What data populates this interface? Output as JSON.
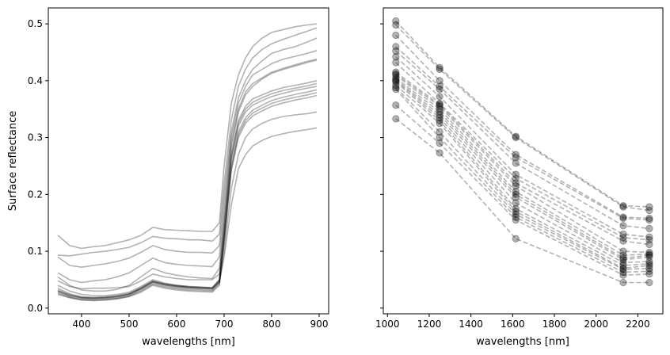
{
  "chart_data": [
    {
      "type": "line",
      "xlabel": "wavelengths [nm]",
      "ylabel": "Surface reflectance",
      "xlim": [
        330,
        920
      ],
      "ylim": [
        -0.01,
        0.528
      ],
      "xticks": [
        400,
        500,
        600,
        700,
        800,
        900
      ],
      "yticks": [
        0.0,
        0.1,
        0.2,
        0.3,
        0.4,
        0.5
      ],
      "x": [
        350,
        375,
        400,
        425,
        450,
        475,
        500,
        525,
        550,
        575,
        600,
        625,
        650,
        675,
        690,
        700,
        715,
        730,
        745,
        760,
        780,
        800,
        825,
        850,
        875,
        895
      ],
      "series": [
        {
          "color": "#000000",
          "opacity": 0.3,
          "values": [
            0.128,
            0.11,
            0.105,
            0.108,
            0.11,
            0.115,
            0.12,
            0.128,
            0.142,
            0.138,
            0.137,
            0.136,
            0.135,
            0.135,
            0.15,
            0.25,
            0.36,
            0.41,
            0.44,
            0.46,
            0.475,
            0.485,
            0.49,
            0.495,
            0.498,
            0.5
          ]
        },
        {
          "color": "#000000",
          "opacity": 0.3,
          "values": [
            0.093,
            0.092,
            0.095,
            0.098,
            0.1,
            0.103,
            0.107,
            0.115,
            0.126,
            0.123,
            0.122,
            0.12,
            0.12,
            0.118,
            0.13,
            0.22,
            0.33,
            0.39,
            0.42,
            0.44,
            0.455,
            0.465,
            0.473,
            0.48,
            0.487,
            0.493
          ]
        },
        {
          "color": "#000000",
          "opacity": 0.3,
          "values": [
            0.09,
            0.075,
            0.072,
            0.075,
            0.078,
            0.082,
            0.088,
            0.098,
            0.11,
            0.103,
            0.1,
            0.098,
            0.098,
            0.097,
            0.11,
            0.2,
            0.31,
            0.37,
            0.4,
            0.42,
            0.435,
            0.448,
            0.455,
            0.46,
            0.468,
            0.475
          ]
        },
        {
          "color": "#000000",
          "opacity": 0.3,
          "values": [
            0.062,
            0.05,
            0.045,
            0.048,
            0.05,
            0.055,
            0.062,
            0.075,
            0.088,
            0.08,
            0.077,
            0.075,
            0.074,
            0.073,
            0.09,
            0.18,
            0.3,
            0.36,
            0.39,
            0.41,
            0.42,
            0.43,
            0.438,
            0.443,
            0.448,
            0.453
          ]
        },
        {
          "color": "#000000",
          "opacity": 0.3,
          "values": [
            0.055,
            0.04,
            0.032,
            0.03,
            0.03,
            0.033,
            0.04,
            0.055,
            0.07,
            0.062,
            0.058,
            0.055,
            0.053,
            0.052,
            0.07,
            0.16,
            0.29,
            0.35,
            0.38,
            0.395,
            0.405,
            0.415,
            0.422,
            0.428,
            0.434,
            0.438
          ]
        },
        {
          "color": "#000000",
          "opacity": 0.3,
          "values": [
            0.048,
            0.038,
            0.034,
            0.035,
            0.035,
            0.036,
            0.038,
            0.048,
            0.06,
            0.055,
            0.052,
            0.05,
            0.05,
            0.05,
            0.06,
            0.15,
            0.28,
            0.345,
            0.375,
            0.39,
            0.403,
            0.413,
            0.42,
            0.426,
            0.432,
            0.436
          ]
        },
        {
          "color": "#000000",
          "opacity": 0.3,
          "values": [
            0.04,
            0.03,
            0.024,
            0.022,
            0.022,
            0.024,
            0.028,
            0.038,
            0.05,
            0.044,
            0.04,
            0.038,
            0.037,
            0.036,
            0.05,
            0.14,
            0.27,
            0.33,
            0.355,
            0.368,
            0.375,
            0.382,
            0.388,
            0.392,
            0.396,
            0.4
          ]
        },
        {
          "color": "#000000",
          "opacity": 0.3,
          "values": [
            0.035,
            0.025,
            0.02,
            0.019,
            0.02,
            0.022,
            0.026,
            0.036,
            0.048,
            0.043,
            0.04,
            0.038,
            0.037,
            0.036,
            0.05,
            0.13,
            0.265,
            0.325,
            0.35,
            0.362,
            0.37,
            0.377,
            0.383,
            0.387,
            0.391,
            0.395
          ]
        },
        {
          "color": "#000000",
          "opacity": 0.3,
          "values": [
            0.03,
            0.022,
            0.018,
            0.017,
            0.018,
            0.02,
            0.024,
            0.034,
            0.046,
            0.041,
            0.038,
            0.036,
            0.035,
            0.034,
            0.048,
            0.13,
            0.26,
            0.32,
            0.345,
            0.357,
            0.365,
            0.372,
            0.378,
            0.383,
            0.387,
            0.39
          ]
        },
        {
          "color": "#000000",
          "opacity": 0.3,
          "values": [
            0.028,
            0.02,
            0.016,
            0.015,
            0.016,
            0.018,
            0.022,
            0.032,
            0.044,
            0.039,
            0.036,
            0.034,
            0.033,
            0.032,
            0.045,
            0.12,
            0.25,
            0.31,
            0.335,
            0.348,
            0.357,
            0.365,
            0.371,
            0.376,
            0.38,
            0.384
          ]
        },
        {
          "color": "#000000",
          "opacity": 0.3,
          "values": [
            0.026,
            0.019,
            0.015,
            0.014,
            0.015,
            0.017,
            0.021,
            0.03,
            0.042,
            0.037,
            0.034,
            0.032,
            0.031,
            0.03,
            0.043,
            0.12,
            0.245,
            0.305,
            0.33,
            0.343,
            0.352,
            0.36,
            0.366,
            0.371,
            0.375,
            0.379
          ]
        },
        {
          "color": "#000000",
          "opacity": 0.3,
          "values": [
            0.024,
            0.018,
            0.014,
            0.013,
            0.014,
            0.016,
            0.02,
            0.028,
            0.04,
            0.035,
            0.032,
            0.03,
            0.029,
            0.028,
            0.04,
            0.115,
            0.24,
            0.3,
            0.325,
            0.338,
            0.347,
            0.355,
            0.361,
            0.366,
            0.37,
            0.374
          ]
        },
        {
          "color": "#000000",
          "opacity": 0.3,
          "values": [
            0.032,
            0.024,
            0.019,
            0.018,
            0.019,
            0.021,
            0.025,
            0.035,
            0.047,
            0.042,
            0.039,
            0.037,
            0.036,
            0.035,
            0.047,
            0.1,
            0.21,
            0.27,
            0.3,
            0.315,
            0.325,
            0.332,
            0.337,
            0.34,
            0.342,
            0.345
          ]
        },
        {
          "color": "#000000",
          "opacity": 0.3,
          "values": [
            0.03,
            0.022,
            0.018,
            0.017,
            0.018,
            0.02,
            0.024,
            0.034,
            0.046,
            0.041,
            0.038,
            0.036,
            0.035,
            0.034,
            0.045,
            0.09,
            0.18,
            0.245,
            0.27,
            0.285,
            0.295,
            0.302,
            0.307,
            0.311,
            0.314,
            0.317
          ]
        }
      ]
    },
    {
      "type": "line",
      "xlabel": "wavelengths [nm]",
      "ylabel": "",
      "xlim": [
        980,
        2320
      ],
      "ylim": [
        -0.01,
        0.528
      ],
      "xticks": [
        1000,
        1200,
        1400,
        1600,
        1800,
        2000,
        2200
      ],
      "markers": "circle",
      "linestyle": "dashed",
      "x": [
        1040,
        1250,
        1615,
        2130,
        2255
      ],
      "series": [
        {
          "color": "#000000",
          "opacity": 0.3,
          "values": [
            0.505,
            0.423,
            0.302,
            0.18,
            0.178
          ]
        },
        {
          "color": "#000000",
          "opacity": 0.3,
          "values": [
            0.498,
            0.42,
            0.3,
            0.178,
            0.172
          ]
        },
        {
          "color": "#000000",
          "opacity": 0.3,
          "values": [
            0.48,
            0.4,
            0.27,
            0.16,
            0.158
          ]
        },
        {
          "color": "#000000",
          "opacity": 0.3,
          "values": [
            0.46,
            0.39,
            0.265,
            0.158,
            0.155
          ]
        },
        {
          "color": "#000000",
          "opacity": 0.3,
          "values": [
            0.452,
            0.385,
            0.255,
            0.145,
            0.14
          ]
        },
        {
          "color": "#000000",
          "opacity": 0.3,
          "values": [
            0.442,
            0.372,
            0.235,
            0.13,
            0.125
          ]
        },
        {
          "color": "#000000",
          "opacity": 0.3,
          "values": [
            0.432,
            0.36,
            0.228,
            0.124,
            0.12
          ]
        },
        {
          "color": "#000000",
          "opacity": 0.3,
          "values": [
            0.415,
            0.358,
            0.22,
            0.118,
            0.112
          ]
        },
        {
          "color": "#000000",
          "opacity": 0.3,
          "values": [
            0.412,
            0.355,
            0.215,
            0.1,
            0.098
          ]
        },
        {
          "color": "#000000",
          "opacity": 0.3,
          "values": [
            0.41,
            0.35,
            0.205,
            0.093,
            0.095
          ]
        },
        {
          "color": "#000000",
          "opacity": 0.3,
          "values": [
            0.405,
            0.345,
            0.2,
            0.088,
            0.093
          ]
        },
        {
          "color": "#000000",
          "opacity": 0.3,
          "values": [
            0.402,
            0.34,
            0.195,
            0.085,
            0.09
          ]
        },
        {
          "color": "#000000",
          "opacity": 0.3,
          "values": [
            0.4,
            0.335,
            0.185,
            0.08,
            0.082
          ]
        },
        {
          "color": "#000000",
          "opacity": 0.3,
          "values": [
            0.398,
            0.33,
            0.175,
            0.075,
            0.078
          ]
        },
        {
          "color": "#000000",
          "opacity": 0.3,
          "values": [
            0.392,
            0.325,
            0.17,
            0.07,
            0.075
          ]
        },
        {
          "color": "#000000",
          "opacity": 0.3,
          "values": [
            0.388,
            0.31,
            0.165,
            0.068,
            0.07
          ]
        },
        {
          "color": "#000000",
          "opacity": 0.3,
          "values": [
            0.385,
            0.3,
            0.16,
            0.063,
            0.065
          ]
        },
        {
          "color": "#000000",
          "opacity": 0.3,
          "values": [
            0.357,
            0.29,
            0.155,
            0.058,
            0.06
          ]
        },
        {
          "color": "#000000",
          "opacity": 0.3,
          "values": [
            0.333,
            0.273,
            0.122,
            0.045,
            0.045
          ]
        }
      ]
    }
  ]
}
